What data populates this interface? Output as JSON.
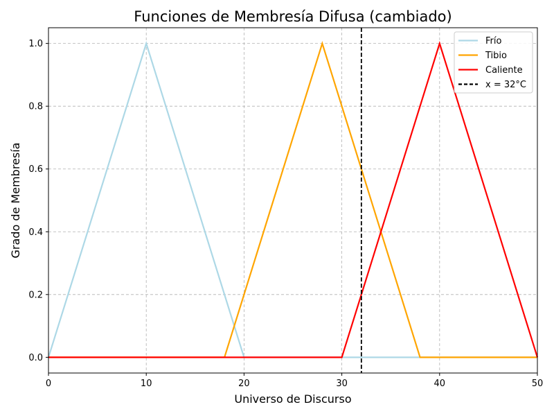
{
  "chart_data": {
    "type": "line",
    "title": "Funciones de Membresía Difusa (cambiado)",
    "xlabel": "Universo de Discurso",
    "ylabel": "Grado de Membresía",
    "xlim": [
      0,
      50
    ],
    "ylim": [
      -0.05,
      1.05
    ],
    "xticks": [
      0,
      10,
      20,
      30,
      40,
      50
    ],
    "yticks": [
      0.0,
      0.2,
      0.4,
      0.6,
      0.8,
      1.0
    ],
    "xtick_labels": [
      "0",
      "10",
      "20",
      "30",
      "40",
      "50"
    ],
    "ytick_labels": [
      "0.0",
      "0.2",
      "0.4",
      "0.6",
      "0.8",
      "1.0"
    ],
    "grid": true,
    "legend_position": "top-right",
    "series": [
      {
        "name": "Frío",
        "color": "#add8e6",
        "style": "solid",
        "x": [
          0,
          10,
          20,
          50
        ],
        "y": [
          0,
          1,
          0,
          0
        ]
      },
      {
        "name": "Tibio",
        "color": "#ffa500",
        "style": "solid",
        "x": [
          0,
          18,
          28,
          38,
          50
        ],
        "y": [
          0,
          0,
          1,
          0,
          0
        ]
      },
      {
        "name": "Caliente",
        "color": "#ff0000",
        "style": "solid",
        "x": [
          0,
          30,
          40,
          50
        ],
        "y": [
          0,
          0,
          1,
          0
        ]
      }
    ],
    "vline": {
      "name": "x = 32°C",
      "x": 32,
      "color": "#000000",
      "style": "dashed"
    }
  }
}
